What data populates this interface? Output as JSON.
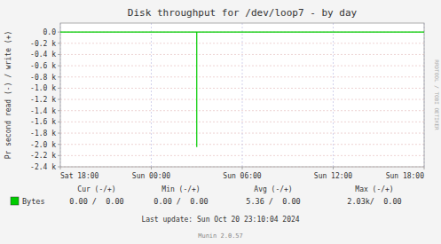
{
  "chart_data": {
    "type": "line",
    "title": "Disk throughput for /dev/loop7 - by day",
    "y_label": "Pr second read (-) / write (+)",
    "x": [
      0,
      32400,
      32400,
      32400,
      86400
    ],
    "series": [
      {
        "name": "Bytes",
        "color": "#00cc00",
        "values": [
          0.0,
          0.0,
          -2050,
          0.0,
          0.0
        ]
      }
    ],
    "xlim": [
      0,
      86400
    ],
    "xticks": [
      {
        "value": 0,
        "label": "Sat 18:00"
      },
      {
        "value": 21600,
        "label": "Sun 00:00"
      },
      {
        "value": 43200,
        "label": "Sun 06:00"
      },
      {
        "value": 64800,
        "label": "Sun 12:00"
      },
      {
        "value": 86400,
        "label": "Sun 18:00"
      }
    ],
    "ylim": [
      -2400,
      160
    ],
    "yticks": [
      {
        "value": 0.0,
        "label": "0.0"
      },
      {
        "value": -200,
        "label": "-0.2 k"
      },
      {
        "value": -400,
        "label": "-0.4 k"
      },
      {
        "value": -600,
        "label": "-0.6 k"
      },
      {
        "value": -800,
        "label": "-0.8 k"
      },
      {
        "value": -1000,
        "label": "-1.0 k"
      },
      {
        "value": -1200,
        "label": "-1.2 k"
      },
      {
        "value": -1400,
        "label": "-1.4 k"
      },
      {
        "value": -1600,
        "label": "-1.6 k"
      },
      {
        "value": -1800,
        "label": "-1.8 k"
      },
      {
        "value": -2000,
        "label": "-2.0 k"
      },
      {
        "value": -2200,
        "label": "-2.2 k"
      },
      {
        "value": -2400,
        "label": "-2.4 k"
      }
    ],
    "grid": true,
    "legend": "bottom",
    "annotations": [
      "Cur (-/+)",
      "Min (-/+)",
      "Avg (-/+)",
      "Max (-/+)",
      "0.00 /  0.00",
      "0.00 /  0.00",
      "5.36 /  0.00",
      "2.03k/  0.00",
      "Last update: Sun Oct 20 23:10:04 2024",
      "Munin 2.0.57",
      "RRDTOOL / TOBI OETIKER"
    ]
  }
}
